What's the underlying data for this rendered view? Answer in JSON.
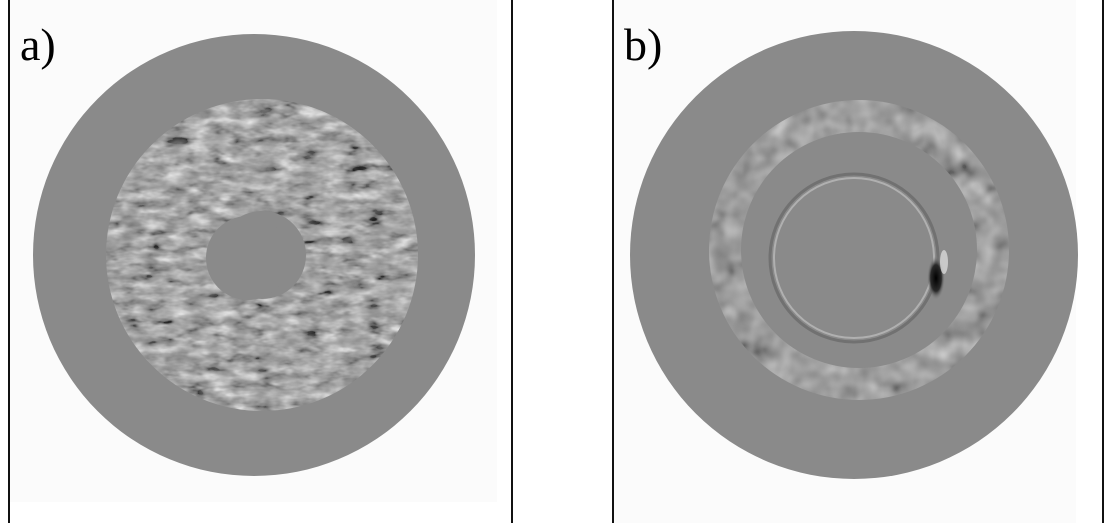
{
  "panels": [
    {
      "label": "a)"
    },
    {
      "label": "b)"
    }
  ],
  "colors": {
    "background": "#ffffff",
    "plot_background": "#fbfbfb",
    "disk_fill": "#8a8a8a",
    "frame": "#111111"
  }
}
